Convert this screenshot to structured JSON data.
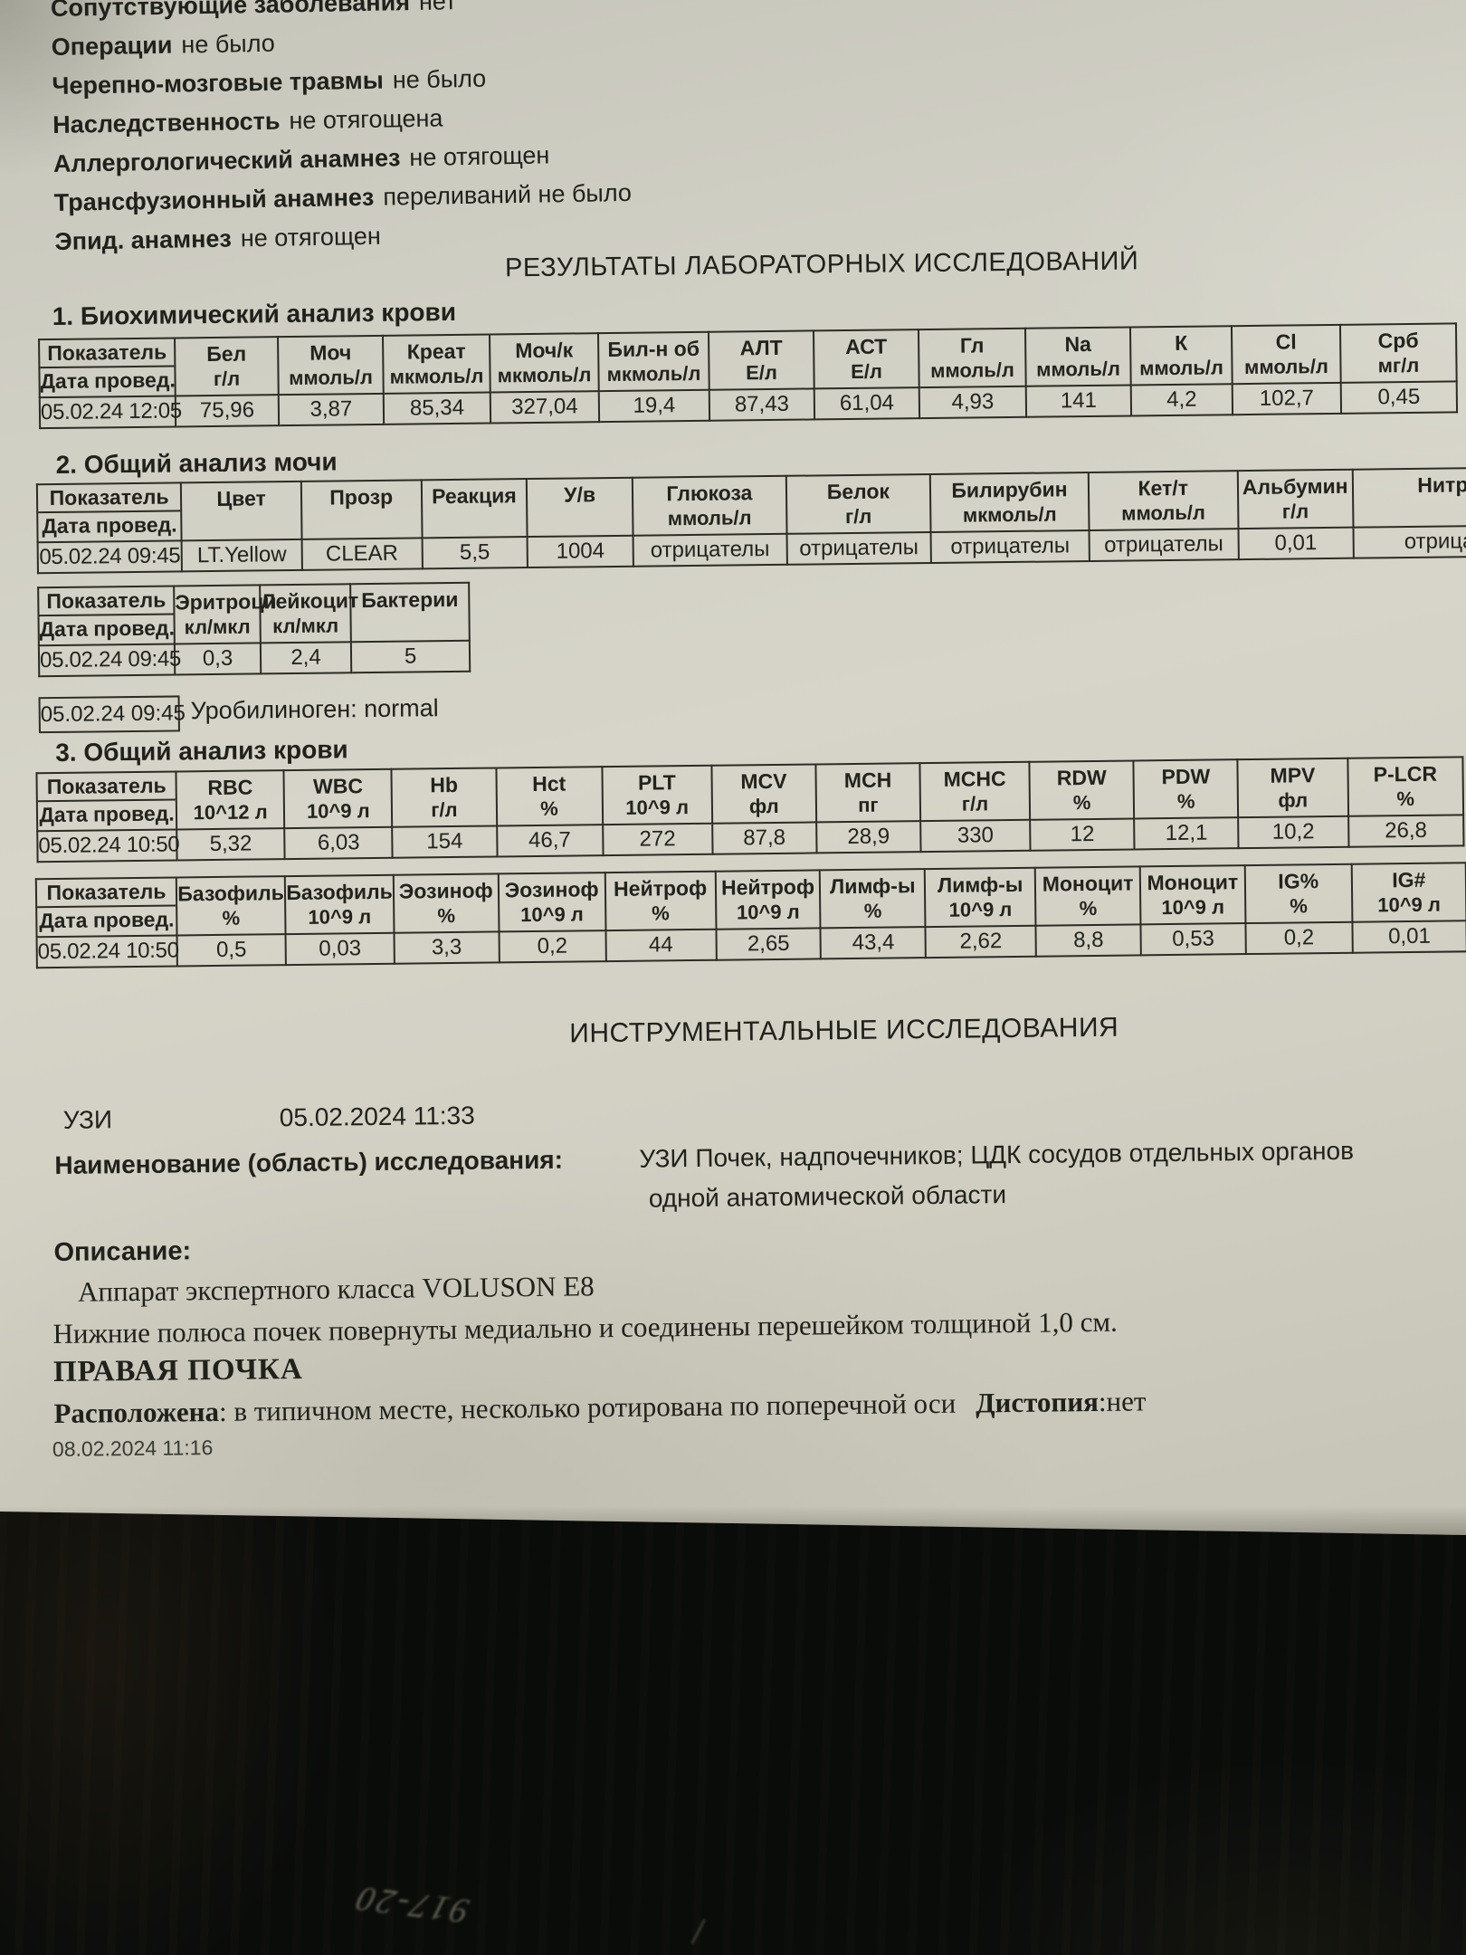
{
  "anamnesis": [
    {
      "label": "Сопутствующие заболевания",
      "value": "нет"
    },
    {
      "label": "Операции",
      "value": "не было"
    },
    {
      "label": "Черепно-мозговые травмы",
      "value": "не было"
    },
    {
      "label": "Наследственность",
      "value": "не отягощена"
    },
    {
      "label": "Аллергологический анамнез",
      "value": "не отягощен"
    },
    {
      "label": "Трансфузионный анамнез",
      "value": "переливаний не было"
    },
    {
      "label": "Эпид. анамнез",
      "value": "не отягощен"
    }
  ],
  "lab_results_title": "РЕЗУЛЬТАТЫ ЛАБОРАТОРНЫХ ИССЛЕДОВАНИЙ",
  "sections": {
    "bio": "1. Биохимический анализ крови",
    "urine": "2. Общий анализ мочи",
    "blood": "3. Общий анализ крови"
  },
  "tables": {
    "bio": {
      "corner_top": "Показатель",
      "corner_bottom": "Дата провед.",
      "row_label": "05.02.24 12:05",
      "columns": [
        {
          "name": "Бел",
          "unit": "г/л"
        },
        {
          "name": "Моч",
          "unit": "ммоль/л"
        },
        {
          "name": "Креат",
          "unit": "мкмоль/л"
        },
        {
          "name": "Моч/к",
          "unit": "мкмоль/л"
        },
        {
          "name": "Бил-н об",
          "unit": "мкмоль/л"
        },
        {
          "name": "АЛТ",
          "unit": "Е/л"
        },
        {
          "name": "АСТ",
          "unit": "Е/л"
        },
        {
          "name": "Гл",
          "unit": "ммоль/л"
        },
        {
          "name": "Na",
          "unit": "ммоль/л"
        },
        {
          "name": "К",
          "unit": "ммоль/л"
        },
        {
          "name": "Cl",
          "unit": "ммоль/л"
        },
        {
          "name": "Срб",
          "unit": "мг/л"
        }
      ],
      "values": [
        "75,96",
        "3,87",
        "85,34",
        "327,04",
        "19,4",
        "87,43",
        "61,04",
        "4,93",
        "141",
        "4,2",
        "102,7",
        "0,45"
      ]
    },
    "urine": {
      "corner_top": "Показатель",
      "corner_bottom": "Дата провед.",
      "row_label": "05.02.24 09:45",
      "columns": [
        {
          "name": "Цвет",
          "unit": ""
        },
        {
          "name": "Прозр",
          "unit": ""
        },
        {
          "name": "Реакция",
          "unit": ""
        },
        {
          "name": "У/в",
          "unit": ""
        },
        {
          "name": "Глюкоза",
          "unit": "ммоль/л"
        },
        {
          "name": "Белок",
          "unit": "г/л"
        },
        {
          "name": "Билирубин",
          "unit": "мкмоль/л"
        },
        {
          "name": "Кет/т",
          "unit": "ммоль/л"
        },
        {
          "name": "Альбумин",
          "unit": "г/л"
        },
        {
          "name": "Нитриты",
          "unit": ""
        }
      ],
      "values": [
        "LT.Yellow",
        "CLEAR",
        "5,5",
        "1004",
        "отрицателы",
        "отрицателы",
        "отрицателы",
        "отрицателы",
        "0,01",
        "отрицателы"
      ]
    },
    "urine_micro": {
      "corner_top": "Показатель",
      "corner_bottom": "Дата провед.",
      "row_label": "05.02.24 09:45",
      "columns": [
        {
          "name": "Эритроци",
          "unit": "кл/мкл"
        },
        {
          "name": "Лейкоцит",
          "unit": "кл/мкл"
        },
        {
          "name": "Бактерии",
          "unit": ""
        }
      ],
      "values": [
        "0,3",
        "2,4",
        "5"
      ]
    },
    "blood_main": {
      "corner_top": "Показатель",
      "corner_bottom": "Дата провед.",
      "row_label": "05.02.24 10:50",
      "columns": [
        {
          "name": "RBC",
          "unit": "10^12 л"
        },
        {
          "name": "WBC",
          "unit": "10^9 л"
        },
        {
          "name": "Hb",
          "unit": "г/л"
        },
        {
          "name": "Hct",
          "unit": "%"
        },
        {
          "name": "PLT",
          "unit": "10^9 л"
        },
        {
          "name": "MCV",
          "unit": "фл"
        },
        {
          "name": "MCH",
          "unit": "пг"
        },
        {
          "name": "MCHC",
          "unit": "г/л"
        },
        {
          "name": "RDW",
          "unit": "%"
        },
        {
          "name": "PDW",
          "unit": "%"
        },
        {
          "name": "MPV",
          "unit": "фл"
        },
        {
          "name": "P-LCR",
          "unit": "%"
        }
      ],
      "values": [
        "5,32",
        "6,03",
        "154",
        "46,7",
        "272",
        "87,8",
        "28,9",
        "330",
        "12",
        "12,1",
        "10,2",
        "26,8"
      ]
    },
    "blood_diff": {
      "corner_top": "Показатель",
      "corner_bottom": "Дата провед.",
      "row_label": "05.02.24 10:50",
      "columns": [
        {
          "name": "Базофиль",
          "unit": "%"
        },
        {
          "name": "Базофиль",
          "unit": "10^9 л"
        },
        {
          "name": "Эозиноф",
          "unit": "%"
        },
        {
          "name": "Эозиноф",
          "unit": "10^9 л"
        },
        {
          "name": "Нейтроф",
          "unit": "%"
        },
        {
          "name": "Нейтроф",
          "unit": "10^9 л"
        },
        {
          "name": "Лимф-ы",
          "unit": "%"
        },
        {
          "name": "Лимф-ы",
          "unit": "10^9 л"
        },
        {
          "name": "Моноцит",
          "unit": "%"
        },
        {
          "name": "Моноцит",
          "unit": "10^9 л"
        },
        {
          "name": "IG%",
          "unit": "%"
        },
        {
          "name": "IG#",
          "unit": "10^9 л"
        }
      ],
      "values": [
        "0,5",
        "0,03",
        "3,3",
        "0,2",
        "44",
        "2,65",
        "43,4",
        "2,62",
        "8,8",
        "0,53",
        "0,2",
        "0,01"
      ]
    }
  },
  "urobilinogen": {
    "date": "05.02.24 09:45",
    "text": "Уробилиноген: normal"
  },
  "instrumental": {
    "title": "ИНСТРУМЕНТАЛЬНЫЕ ИССЛЕДОВАНИЯ",
    "uzi_label": "УЗИ",
    "uzi_datetime": "05.02.2024 11:33",
    "name_label": "Наименование (область) исследования:",
    "name_value_line1": "УЗИ Почек, надпочечников; ЦДК сосудов отдельных органов",
    "name_value_line2": "одной анатомической области",
    "description_label": "Описание:",
    "description_line1": "Аппарат экспертного класса VOLUSON  Е8",
    "description_line2": "Нижние полюса почек повернуты медиально и соединены перешейком толщиной 1,0 см.",
    "right_kidney_title": "ПРАВАЯ ПОЧКА",
    "located_label": "Расположена",
    "located_text": ": в типичном месте, несколько ротирована по поперечной оси",
    "dystopia_label": "Дистопия",
    "dystopia_value": ":нет",
    "footer_datetime": "08.02.2024 11:16"
  },
  "handwriting": "917-20"
}
